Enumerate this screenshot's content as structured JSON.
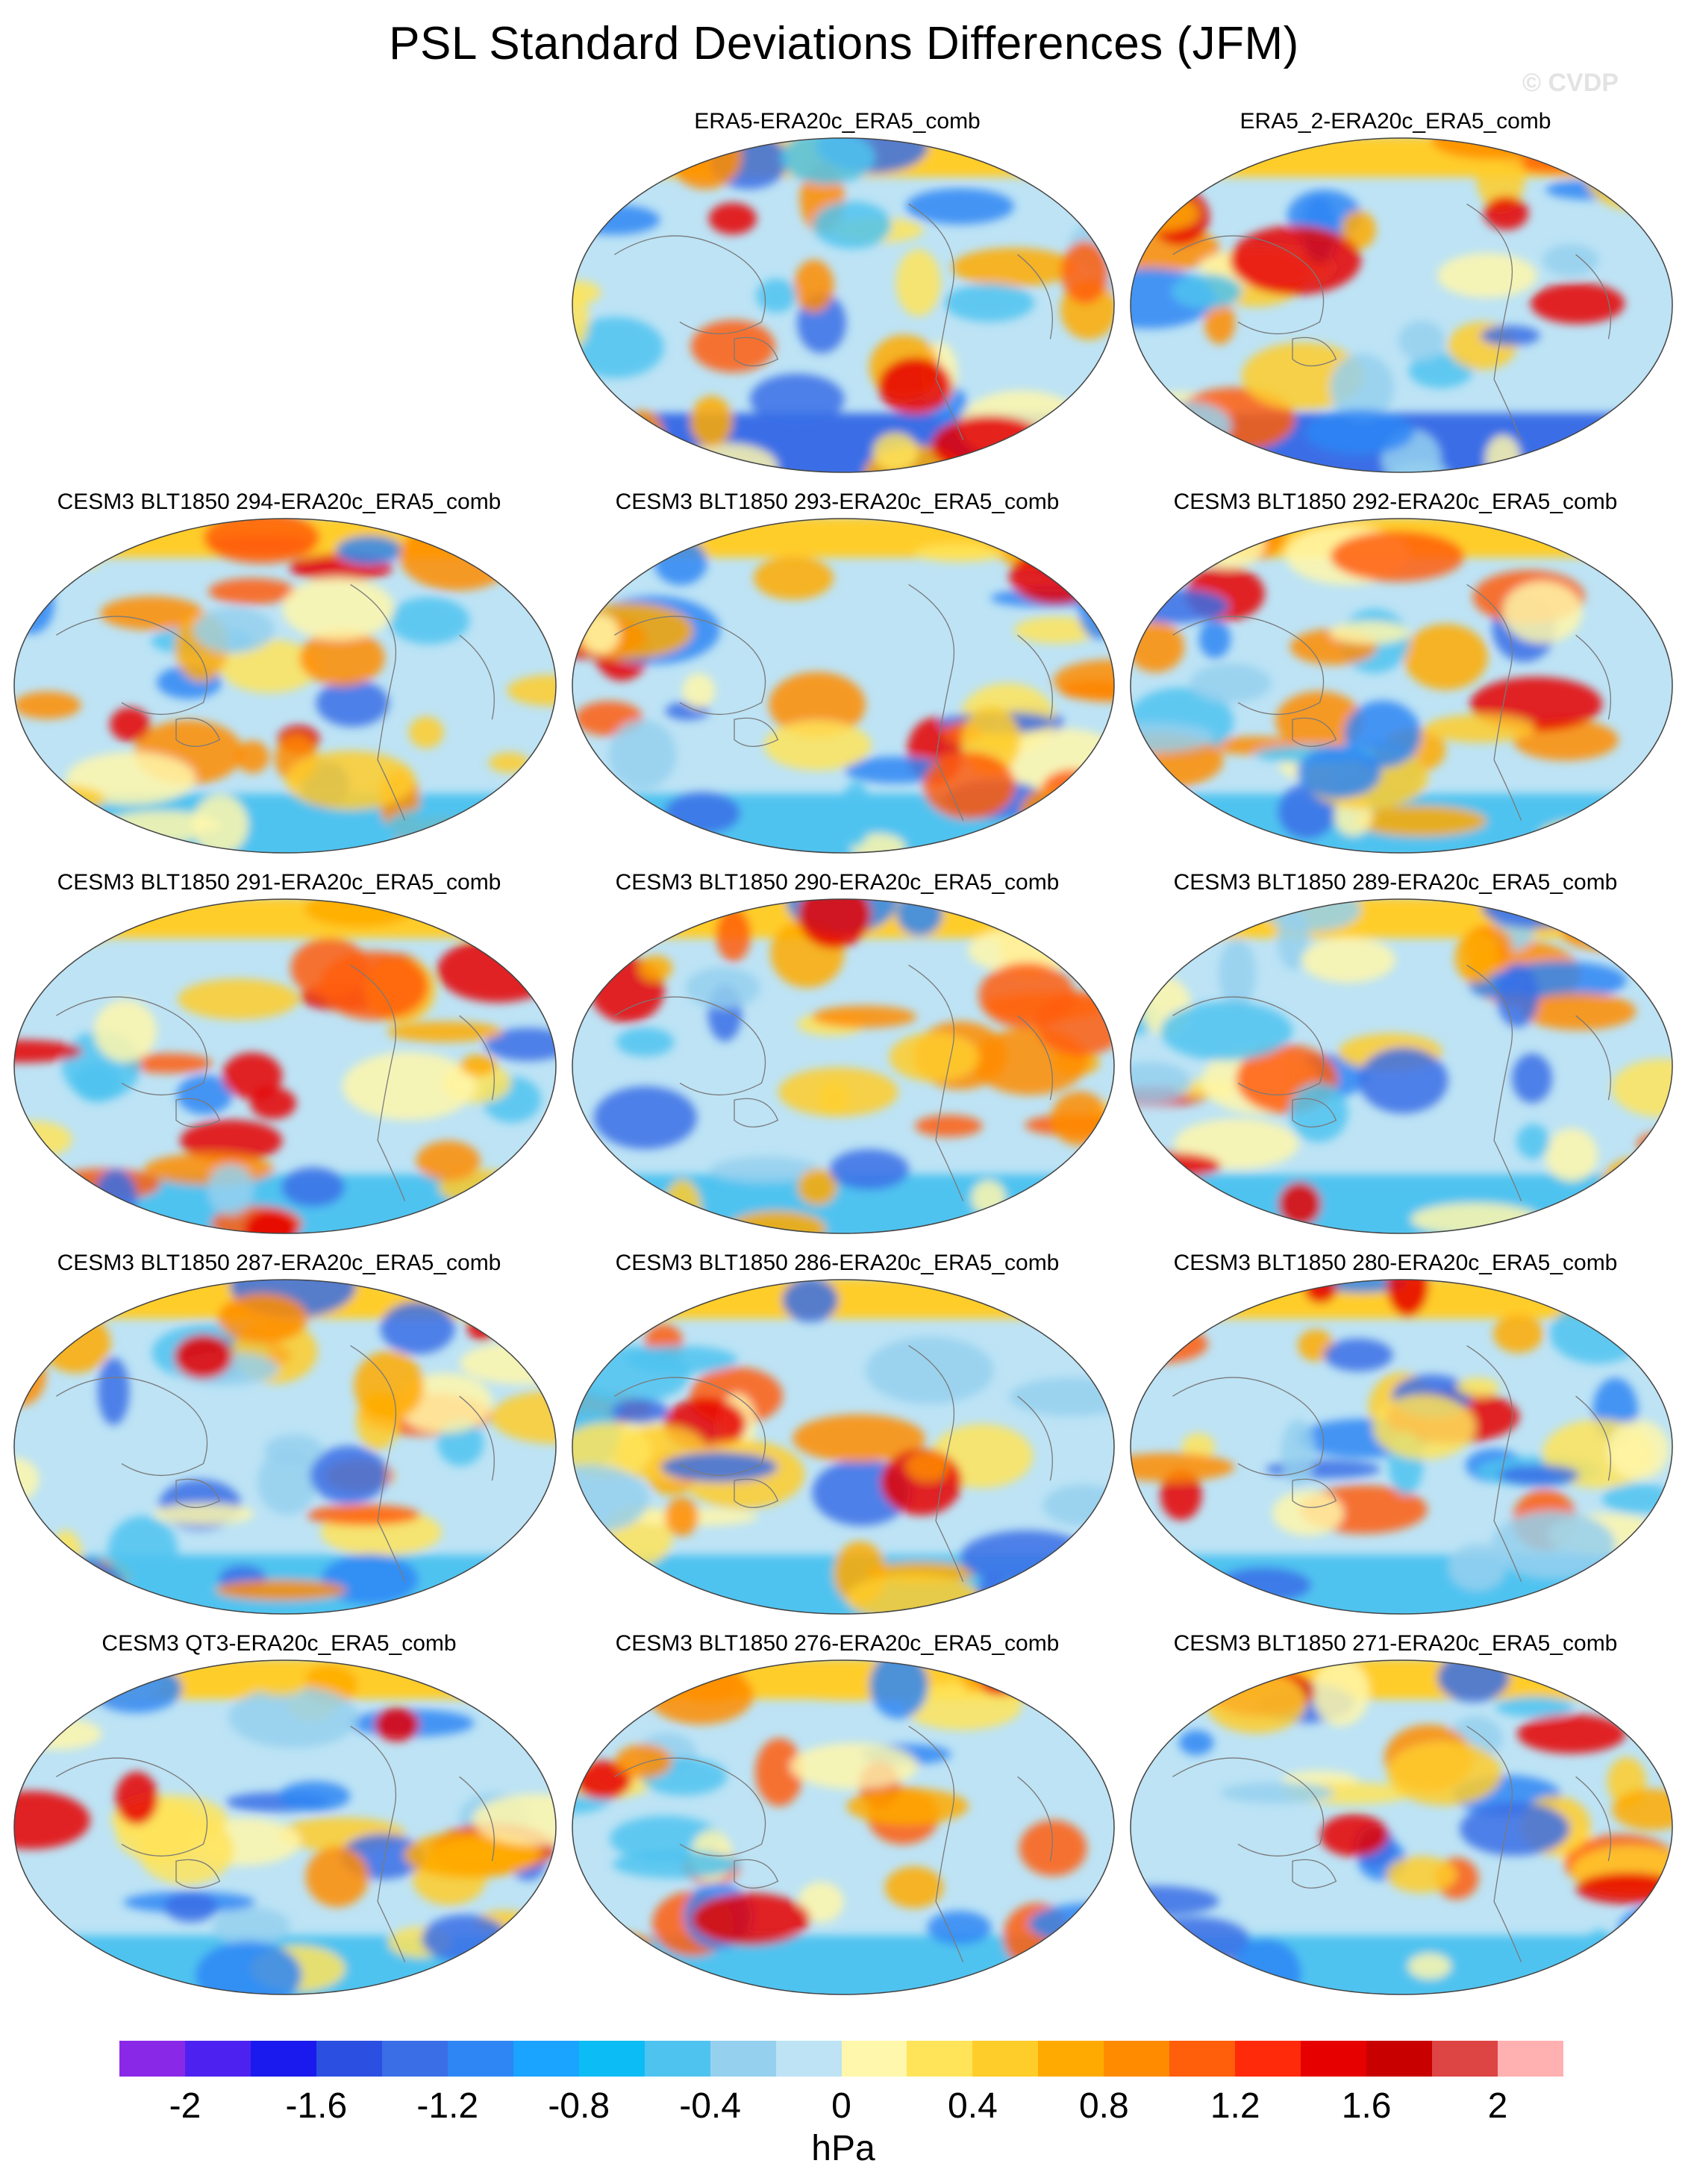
{
  "title": "PSL Standard Deviations Differences (JFM)",
  "watermark": "© CVDP",
  "panels": [
    {
      "label": "ERA5-ERA20c_ERA5_comb",
      "row": 0,
      "col": 1
    },
    {
      "label": "ERA5_2-ERA20c_ERA5_comb",
      "row": 0,
      "col": 2
    },
    {
      "label": "CESM3 BLT1850 294-ERA20c_ERA5_comb",
      "row": 1,
      "col": 0
    },
    {
      "label": "CESM3 BLT1850 293-ERA20c_ERA5_comb",
      "row": 1,
      "col": 1
    },
    {
      "label": "CESM3 BLT1850 292-ERA20c_ERA5_comb",
      "row": 1,
      "col": 2
    },
    {
      "label": "CESM3 BLT1850 291-ERA20c_ERA5_comb",
      "row": 2,
      "col": 0
    },
    {
      "label": "CESM3 BLT1850 290-ERA20c_ERA5_comb",
      "row": 2,
      "col": 1
    },
    {
      "label": "CESM3 BLT1850 289-ERA20c_ERA5_comb",
      "row": 2,
      "col": 2
    },
    {
      "label": "CESM3 BLT1850 287-ERA20c_ERA5_comb",
      "row": 3,
      "col": 0
    },
    {
      "label": "CESM3 BLT1850 286-ERA20c_ERA5_comb",
      "row": 3,
      "col": 1
    },
    {
      "label": "CESM3 BLT1850 280-ERA20c_ERA5_comb",
      "row": 3,
      "col": 2
    },
    {
      "label": "CESM3 QT3-ERA20c_ERA5_comb",
      "row": 4,
      "col": 0
    },
    {
      "label": "CESM3 BLT1850 276-ERA20c_ERA5_comb",
      "row": 4,
      "col": 1
    },
    {
      "label": "CESM3 BLT1850 271-ERA20c_ERA5_comb",
      "row": 4,
      "col": 2
    }
  ],
  "colorbar": {
    "colors": [
      "#8a28e8",
      "#4d22f0",
      "#1a1aee",
      "#2b4fe0",
      "#3a6ee6",
      "#2e86f4",
      "#1aa3ff",
      "#0cbcf4",
      "#4fc3f0",
      "#95d0ef",
      "#bde3f5",
      "#fff7ab",
      "#ffe45a",
      "#ffcd2a",
      "#ffaa00",
      "#ff8c00",
      "#ff5e0a",
      "#ff2a0a",
      "#e60000",
      "#c80000",
      "#dd4444",
      "#ffb0b0"
    ],
    "tick_labels": [
      "-2",
      "-1.6",
      "-1.2",
      "-0.8",
      "-0.4",
      "0",
      "0.4",
      "0.8",
      "1.2",
      "1.6",
      "2"
    ],
    "unit": "hPa"
  }
}
